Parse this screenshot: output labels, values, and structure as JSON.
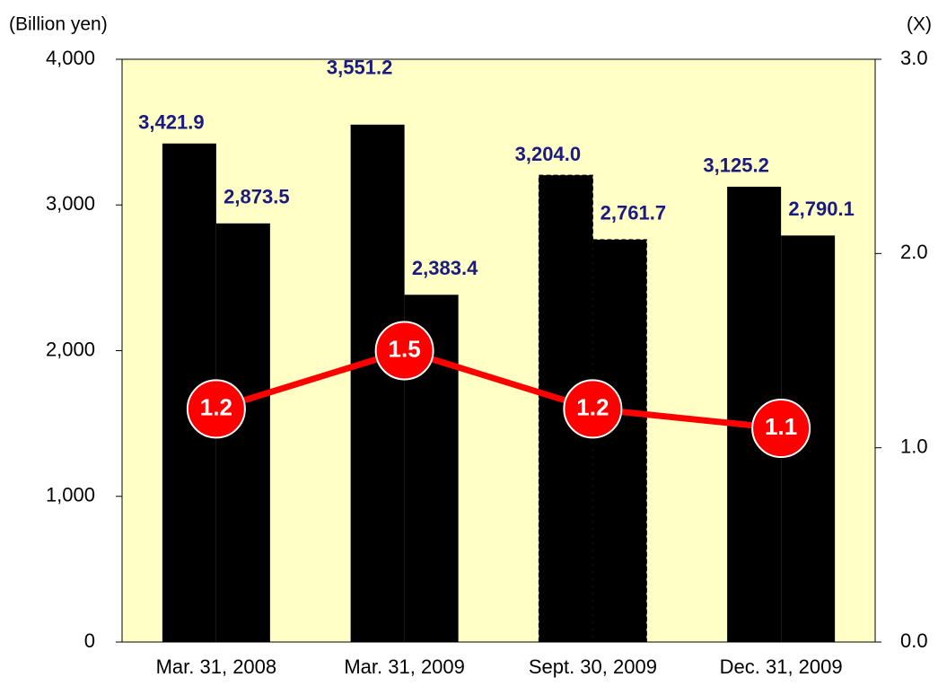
{
  "chart_data": {
    "type": "bar",
    "y_axis_label": "(Billion yen)",
    "y2_axis_label": "(X)",
    "categories": [
      "Mar. 31, 2008",
      "Mar. 31, 2009",
      "Sept. 30, 2009",
      "Dec. 31, 2009"
    ],
    "dashed": [
      false,
      false,
      true,
      false
    ],
    "series": [
      {
        "color": "#8eb4e3",
        "values": [
          3421.9,
          3551.2,
          3204.0,
          3125.2
        ],
        "value_labels": [
          "3,421.9",
          "3,551.2",
          "3,204.0",
          "3,125.2"
        ]
      },
      {
        "color": "#007a73",
        "values": [
          2873.5,
          2383.4,
          2761.7,
          2790.1
        ],
        "value_labels": [
          "2,873.5",
          "2,383.4",
          "2,761.7",
          "2,790.1"
        ]
      },
      {
        "type": "line",
        "axis": "y2",
        "color": "#ff0000",
        "values": [
          1.2,
          1.5,
          1.2,
          1.1
        ]
      }
    ],
    "ylim": [
      0,
      4000
    ],
    "yticks": [
      0,
      {
        "value": 1000,
        "label": "1,000"
      },
      {
        "value": 2000,
        "label": "2,000"
      },
      {
        "value": 3000,
        "label": "3,000"
      },
      {
        "value": 4000,
        "label": "4,000"
      }
    ],
    "y2lim": [
      0,
      3
    ],
    "y2ticks": [
      {
        "value": 0,
        "label": "0.0"
      },
      {
        "value": 1,
        "label": "1.0"
      },
      {
        "value": 2,
        "label": "2.0"
      },
      {
        "value": 3,
        "label": "3.0"
      }
    ],
    "plot_background": "#ffffc6"
  }
}
